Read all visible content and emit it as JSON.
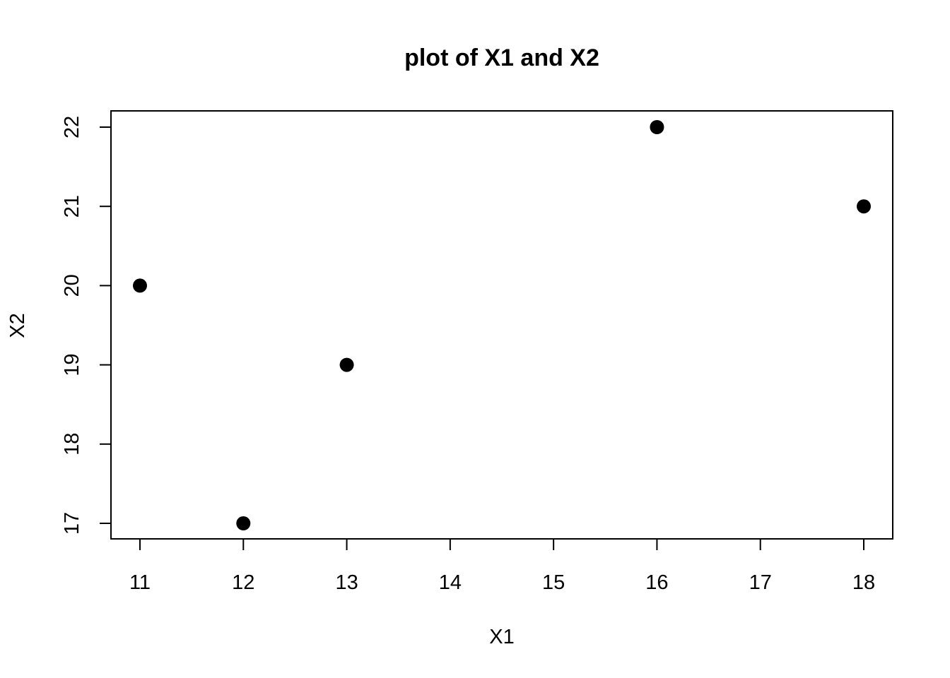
{
  "chart_data": {
    "type": "scatter",
    "title": "plot of X1 and X2",
    "xlabel": "X1",
    "ylabel": "X2",
    "xlim": [
      11,
      18
    ],
    "ylim": [
      17,
      22
    ],
    "x_ticks": [
      11,
      12,
      13,
      14,
      15,
      16,
      17,
      18
    ],
    "y_ticks": [
      17,
      18,
      19,
      20,
      21,
      22
    ],
    "grid": false,
    "point_color": "#000000",
    "series": [
      {
        "points": [
          {
            "x": 11,
            "y": 20
          },
          {
            "x": 12,
            "y": 17
          },
          {
            "x": 13,
            "y": 19
          },
          {
            "x": 16,
            "y": 22
          },
          {
            "x": 18,
            "y": 21
          }
        ]
      }
    ]
  }
}
